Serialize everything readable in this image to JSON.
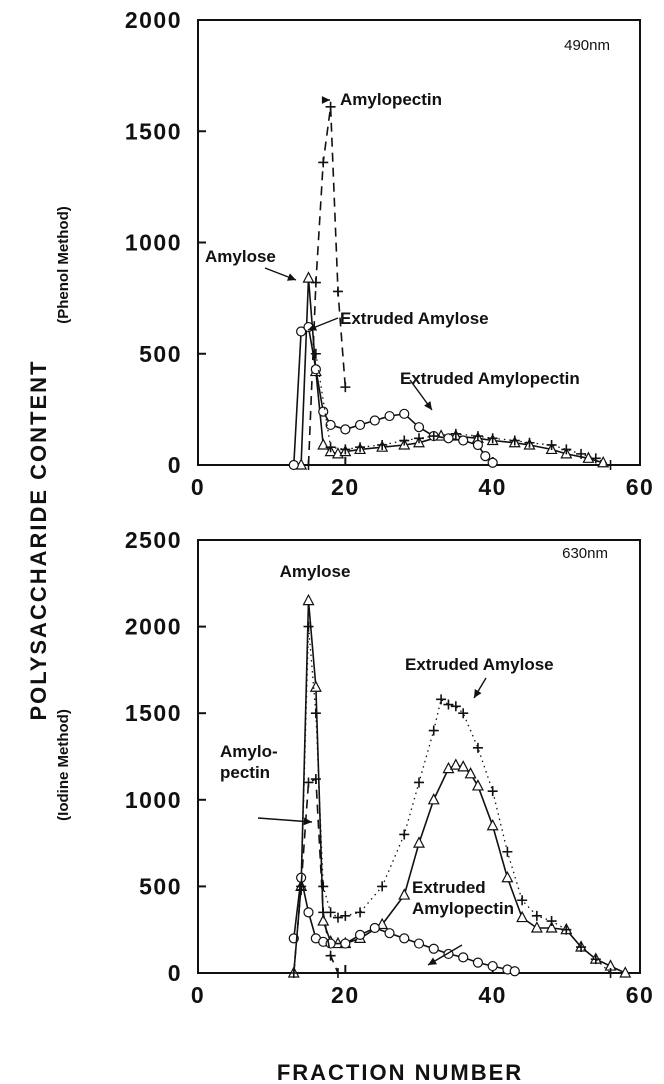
{
  "figure": {
    "ylabel": "POLYSACCHARIDE CONTENT",
    "xlabel": "FRACTION NUMBER"
  },
  "chart_data": [
    {
      "type": "line",
      "wavelength": "490nm",
      "ylabel": "(Phenol Method)",
      "xlim": [
        0,
        60
      ],
      "ylim": [
        0,
        2000
      ],
      "x_ticks": [
        "0",
        "20",
        "40",
        "60"
      ],
      "y_ticks": [
        "0",
        "500",
        "1000",
        "1500",
        "2000"
      ],
      "annotations": [
        "Amylopectin",
        "Amylose",
        "Extruded Amylose",
        "Extruded Amylopectin"
      ],
      "series": [
        {
          "marker": "+",
          "style": "dashed",
          "x": [
            15,
            16,
            17,
            18,
            19,
            20
          ],
          "y": [
            0,
            820,
            1360,
            1610,
            780,
            350
          ]
        },
        {
          "marker": "triangle",
          "style": "solid",
          "x": [
            14,
            15,
            16,
            17,
            18,
            19,
            20,
            22,
            25,
            28,
            30,
            33,
            35,
            38,
            40,
            43,
            45,
            48,
            50,
            53,
            55
          ],
          "y": [
            0,
            840,
            420,
            90,
            60,
            50,
            60,
            70,
            80,
            90,
            100,
            130,
            130,
            120,
            110,
            100,
            90,
            70,
            50,
            30,
            10
          ]
        },
        {
          "marker": "circle",
          "style": "solid",
          "x": [
            13,
            14,
            15,
            16,
            17,
            18,
            20,
            22,
            24,
            26,
            28,
            30,
            32,
            34,
            36,
            38,
            39,
            40
          ],
          "y": [
            0,
            600,
            620,
            430,
            240,
            180,
            160,
            180,
            200,
            220,
            230,
            170,
            130,
            120,
            110,
            90,
            40,
            10
          ]
        },
        {
          "marker": "+",
          "style": "dotted",
          "x": [
            16,
            18,
            20,
            22,
            25,
            28,
            30,
            32,
            35,
            38,
            40,
            43,
            45,
            48,
            50,
            52,
            54,
            56
          ],
          "y": [
            500,
            80,
            70,
            80,
            90,
            110,
            120,
            130,
            140,
            130,
            120,
            110,
            100,
            90,
            70,
            50,
            30,
            0
          ]
        }
      ]
    },
    {
      "type": "line",
      "wavelength": "630nm",
      "ylabel": "(Iodine Method)",
      "xlim": [
        0,
        60
      ],
      "ylim": [
        0,
        2500
      ],
      "x_ticks": [
        "0",
        "20",
        "40",
        "60"
      ],
      "y_ticks": [
        "0",
        "500",
        "1000",
        "1500",
        "2000",
        "2500"
      ],
      "annotations": [
        "Amylose",
        "Extruded Amylose",
        "Amylo-\npectin",
        "Extruded\nAmylopectin"
      ],
      "series": [
        {
          "marker": "triangle",
          "style": "solid",
          "x": [
            13,
            14,
            15,
            16,
            17,
            18,
            19,
            20,
            22,
            25,
            28,
            30,
            32,
            34,
            35,
            36,
            37,
            38,
            40,
            42,
            44,
            46,
            48,
            50,
            52,
            54,
            56,
            58
          ],
          "y": [
            0,
            500,
            2150,
            1650,
            300,
            180,
            170,
            170,
            200,
            280,
            450,
            750,
            1000,
            1180,
            1200,
            1190,
            1150,
            1080,
            850,
            550,
            320,
            260,
            260,
            250,
            150,
            80,
            40,
            0
          ]
        },
        {
          "marker": "+",
          "style": "dotted",
          "x": [
            14,
            15,
            16,
            17,
            18,
            19,
            20,
            22,
            25,
            28,
            30,
            32,
            33,
            34,
            35,
            36,
            38,
            40,
            42,
            44,
            46,
            48,
            50,
            52,
            54,
            56
          ],
          "y": [
            480,
            2000,
            1500,
            500,
            350,
            320,
            330,
            350,
            500,
            800,
            1100,
            1400,
            1580,
            1550,
            1540,
            1500,
            1300,
            1050,
            700,
            420,
            330,
            300,
            250,
            150,
            80,
            0
          ]
        },
        {
          "marker": "circle",
          "style": "solid",
          "x": [
            13,
            14,
            15,
            16,
            17,
            18,
            20,
            22,
            24,
            26,
            28,
            30,
            32,
            34,
            36,
            38,
            40,
            42,
            43
          ],
          "y": [
            200,
            550,
            350,
            200,
            180,
            170,
            170,
            220,
            260,
            230,
            200,
            170,
            140,
            110,
            90,
            60,
            40,
            20,
            10
          ]
        },
        {
          "marker": "+",
          "style": "dashed",
          "x": [
            13,
            14,
            15,
            16,
            17,
            18,
            19
          ],
          "y": [
            0,
            500,
            1100,
            1120,
            350,
            100,
            0
          ]
        }
      ]
    }
  ]
}
